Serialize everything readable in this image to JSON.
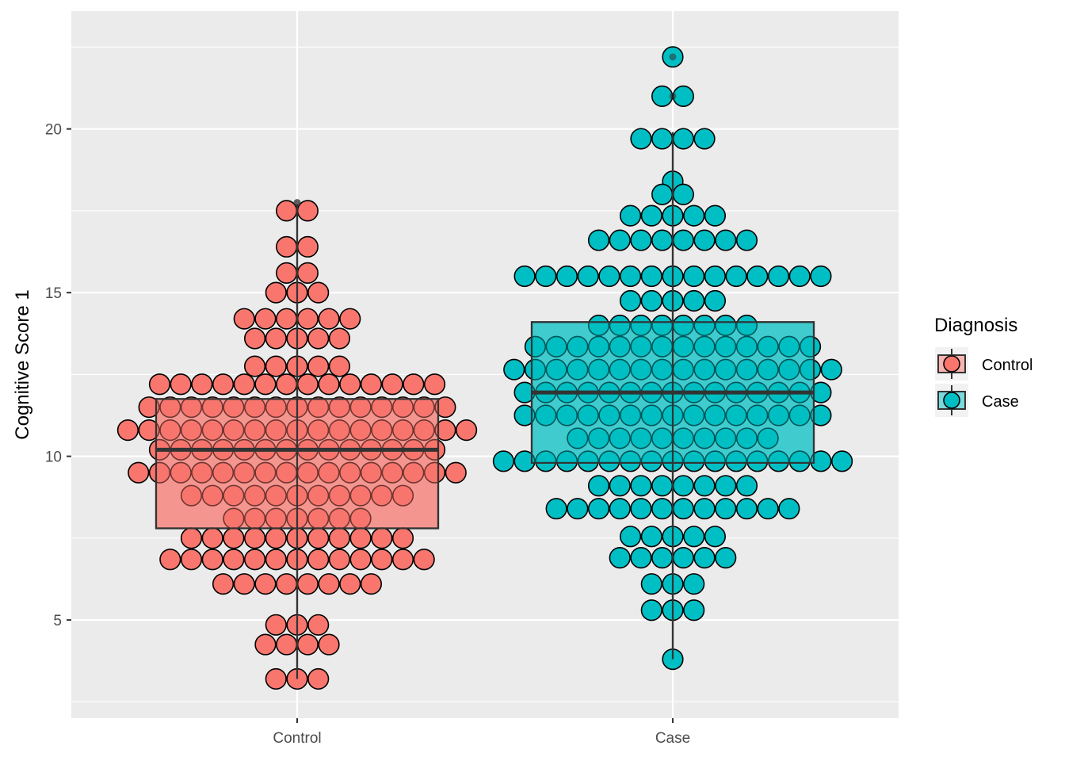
{
  "chart_data": {
    "type": "boxplot+dotplot",
    "title": "",
    "xlabel": "",
    "ylabel": "Cognitive Score 1",
    "ylim": [
      2.0,
      23.6
    ],
    "yticks": [
      5,
      10,
      15,
      20
    ],
    "categories": [
      "Control",
      "Case"
    ],
    "legend": {
      "title": "Diagnosis",
      "position": "right",
      "entries": [
        {
          "label": "Control",
          "fill": "#F8766D"
        },
        {
          "label": "Case",
          "fill": "#00BFC4"
        }
      ]
    },
    "colors": {
      "panel_bg": "#EBEBEB",
      "grid": "#FFFFFF",
      "point_stroke": "#000000",
      "box_stroke": "#333333",
      "axis_text": "#4D4D4D",
      "title_text": "#000000"
    },
    "boxes": [
      {
        "category": "Control",
        "q1": 7.8,
        "median": 10.2,
        "q3": 11.75,
        "whisker_low": 3.2,
        "whisker_high": 17.7,
        "outliers": [
          17.75
        ]
      },
      {
        "category": "Case",
        "q1": 9.8,
        "median": 11.95,
        "q3": 14.1,
        "whisker_low": 3.8,
        "whisker_high": 19.9,
        "outliers": [
          21.0,
          22.2
        ]
      }
    ],
    "dot_rows": {
      "Control": [
        {
          "y": 17.5,
          "n": 2
        },
        {
          "y": 16.4,
          "n": 2
        },
        {
          "y": 15.6,
          "n": 2
        },
        {
          "y": 15.0,
          "n": 3
        },
        {
          "y": 14.2,
          "n": 6
        },
        {
          "y": 13.6,
          "n": 5
        },
        {
          "y": 12.75,
          "n": 5
        },
        {
          "y": 12.2,
          "n": 14
        },
        {
          "y": 11.5,
          "n": 15
        },
        {
          "y": 10.8,
          "n": 17
        },
        {
          "y": 10.2,
          "n": 14
        },
        {
          "y": 9.5,
          "n": 16
        },
        {
          "y": 8.8,
          "n": 11
        },
        {
          "y": 8.1,
          "n": 7
        },
        {
          "y": 7.5,
          "n": 11
        },
        {
          "y": 6.85,
          "n": 13
        },
        {
          "y": 6.1,
          "n": 8
        },
        {
          "y": 4.85,
          "n": 3
        },
        {
          "y": 4.25,
          "n": 4
        },
        {
          "y": 3.2,
          "n": 3
        }
      ],
      "Case": [
        {
          "y": 22.2,
          "n": 1
        },
        {
          "y": 21.0,
          "n": 2
        },
        {
          "y": 19.7,
          "n": 4
        },
        {
          "y": 18.4,
          "n": 1
        },
        {
          "y": 18.0,
          "n": 2
        },
        {
          "y": 17.35,
          "n": 5
        },
        {
          "y": 16.6,
          "n": 8
        },
        {
          "y": 15.5,
          "n": 15
        },
        {
          "y": 14.75,
          "n": 5
        },
        {
          "y": 14.0,
          "n": 8
        },
        {
          "y": 13.35,
          "n": 14
        },
        {
          "y": 12.65,
          "n": 16
        },
        {
          "y": 11.95,
          "n": 15
        },
        {
          "y": 11.25,
          "n": 15
        },
        {
          "y": 10.55,
          "n": 10
        },
        {
          "y": 9.85,
          "n": 17
        },
        {
          "y": 9.1,
          "n": 8
        },
        {
          "y": 8.4,
          "n": 12
        },
        {
          "y": 7.55,
          "n": 5
        },
        {
          "y": 6.9,
          "n": 6
        },
        {
          "y": 6.1,
          "n": 3
        },
        {
          "y": 5.3,
          "n": 3
        },
        {
          "y": 3.8,
          "n": 1
        }
      ]
    }
  }
}
